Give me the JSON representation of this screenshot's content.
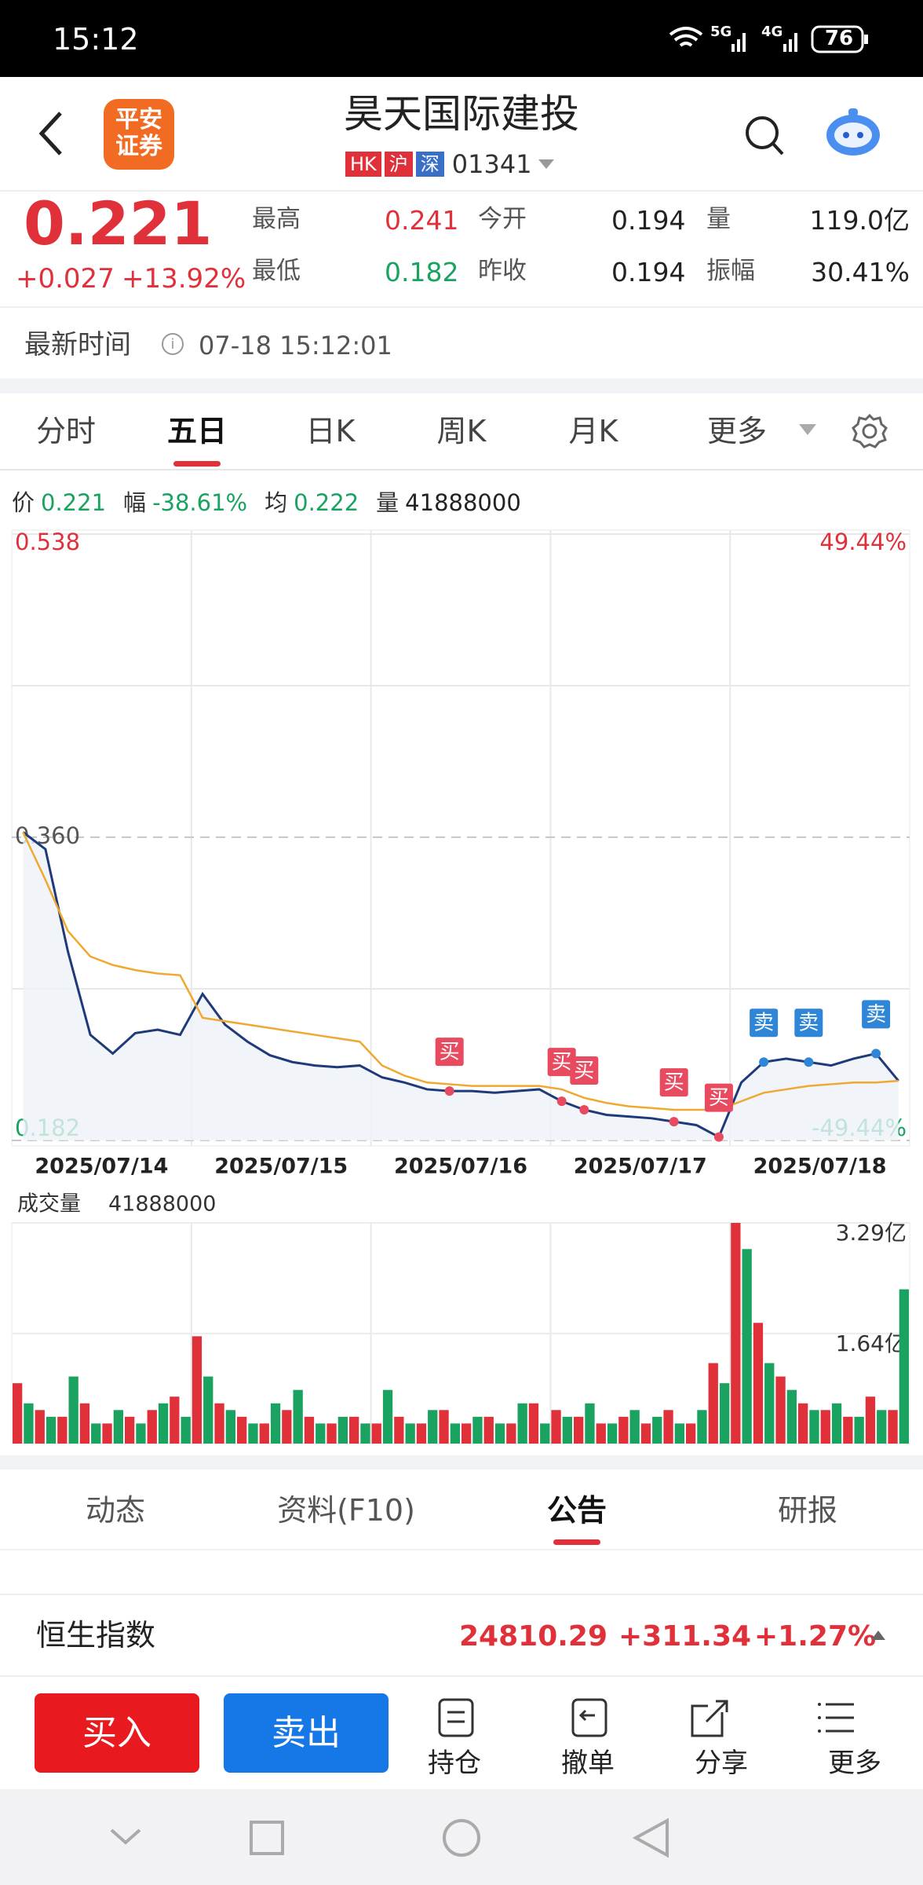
{
  "status_bar": {
    "time": "15:12",
    "network_1": "5G",
    "network_2": "4G",
    "battery": "76"
  },
  "header": {
    "logo_lines": [
      "平安",
      "证券"
    ],
    "title": "昊天国际建投",
    "tags": [
      "HK",
      "沪",
      "深"
    ],
    "code": "01341"
  },
  "quote": {
    "price": "0.221",
    "change": "+0.027",
    "change_pct": "+13.92%",
    "stats": [
      {
        "label": "最高",
        "value": "0.241"
      },
      {
        "label": "最低",
        "value": "0.182"
      },
      {
        "label": "今开",
        "value": "0.194"
      },
      {
        "label": "昨收",
        "value": "0.194"
      },
      {
        "label": "量",
        "value": "119.0亿"
      },
      {
        "label": "振幅",
        "value": "30.41%"
      }
    ]
  },
  "update": {
    "label": "最新时间",
    "time": "07-18 15:12:01"
  },
  "chart_tabs": {
    "items": [
      "分时",
      "五日",
      "日K",
      "周K",
      "月K",
      "更多"
    ],
    "active": 1
  },
  "info_line": [
    {
      "label": "价",
      "value": "0.221"
    },
    {
      "label": "幅",
      "value": "-38.61%"
    },
    {
      "label": "均",
      "value": "0.222"
    },
    {
      "label": "量",
      "value": "41888000"
    }
  ],
  "chart_data": [
    {
      "type": "line",
      "days": [
        "2025/07/14",
        "2025/07/15",
        "2025/07/16",
        "2025/07/17",
        "2025/07/18"
      ],
      "series": [
        {
          "name": "价",
          "color": "#1f3a7a",
          "values": [
            0.363,
            0.353,
            0.293,
            0.244,
            0.233,
            0.245,
            0.247,
            0.244,
            0.268,
            0.25,
            0.24,
            0.232,
            0.228,
            0.226,
            0.225,
            0.226,
            0.219,
            0.216,
            0.212,
            0.211,
            0.211,
            0.21,
            0.211,
            0.212,
            0.205,
            0.2,
            0.197,
            0.196,
            0.195,
            0.193,
            0.191,
            0.184,
            0.216,
            0.228,
            0.23,
            0.228,
            0.226,
            0.23,
            0.233,
            0.217
          ]
        },
        {
          "name": "均",
          "color": "#f0a830",
          "values": [
            0.363,
            0.335,
            0.305,
            0.29,
            0.285,
            0.282,
            0.28,
            0.279,
            0.254,
            0.252,
            0.25,
            0.248,
            0.246,
            0.244,
            0.242,
            0.24,
            0.226,
            0.22,
            0.216,
            0.215,
            0.214,
            0.214,
            0.214,
            0.214,
            0.212,
            0.207,
            0.204,
            0.202,
            0.201,
            0.2,
            0.2,
            0.2,
            0.205,
            0.21,
            0.212,
            0.214,
            0.215,
            0.216,
            0.216,
            0.217
          ]
        }
      ],
      "ylim": [
        0.182,
        0.538
      ],
      "yticks": [
        0.538,
        {
          "value": 0.36,
          "label": "0.360"
        },
        0.182
      ],
      "y2lim": [
        -49.44,
        49.44
      ],
      "y2ticks": [
        {
          "value": 49.44,
          "label": "49.44%"
        },
        {
          "value": -49.44,
          "label": "-49.44%"
        }
      ],
      "markers": [
        {
          "label": "买",
          "index": 19
        },
        {
          "label": "买",
          "index": 24
        },
        {
          "label": "买",
          "index": 25
        },
        {
          "label": "买",
          "index": 29
        },
        {
          "label": "买",
          "index": 31
        },
        {
          "label": "卖",
          "index": 33
        },
        {
          "label": "卖",
          "index": 35
        },
        {
          "label": "卖",
          "index": 38
        }
      ]
    },
    {
      "type": "bar",
      "title": "成交量",
      "value": "41888000",
      "series": [
        {
          "name": "up",
          "color": "#e0303a",
          "values": [
            0.9,
            0.5,
            0.4,
            0.6,
            0.3,
            0.4,
            0.5,
            0.7,
            1.6,
            0.6,
            0.4,
            0.3,
            0.5,
            0.4,
            0.3,
            0.4,
            0.3,
            0.4,
            0.3,
            0.5,
            0.3,
            0.4,
            0.3,
            0.6,
            0.5,
            0.4,
            0.3,
            0.4,
            0.3,
            0.5,
            0.3,
            1.2,
            3.29,
            1.8,
            1.0,
            0.6,
            0.5,
            0.4,
            0.7,
            0.5
          ]
        },
        {
          "name": "down",
          "color": "#1aa260",
          "values": [
            0.6,
            0.4,
            1.0,
            0.3,
            0.5,
            0.3,
            0.6,
            0.4,
            1.0,
            0.5,
            0.3,
            0.6,
            0.8,
            0.3,
            0.4,
            0.3,
            0.8,
            0.3,
            0.5,
            0.3,
            0.4,
            0.3,
            0.6,
            0.3,
            0.4,
            0.6,
            0.3,
            0.5,
            0.4,
            0.3,
            0.5,
            0.9,
            2.9,
            1.2,
            0.8,
            0.5,
            0.6,
            0.4,
            0.5,
            2.3
          ]
        }
      ],
      "ylim": [
        0,
        3.29
      ],
      "yticks": [
        {
          "value": 3.29,
          "label": "3.29亿"
        },
        {
          "value": 1.64,
          "label": "1.64亿"
        }
      ]
    }
  ],
  "section_tabs": {
    "items": [
      "动态",
      "资料(F10)",
      "公告",
      "研报"
    ],
    "active": 2
  },
  "index_row": {
    "name": "恒生指数",
    "value": "24810.29",
    "change": "+311.34",
    "change_pct": "+1.27%"
  },
  "toolbar": {
    "buy": "买入",
    "sell": "卖出",
    "items": [
      "持仓",
      "撤单",
      "分享",
      "更多"
    ]
  }
}
